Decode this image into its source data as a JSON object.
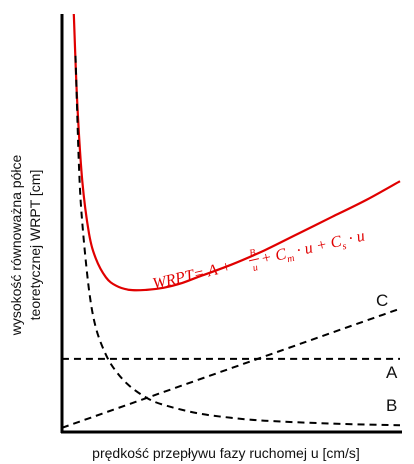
{
  "chart_data": {
    "type": "line",
    "xlabel": "prędkość przepływu fazy ruchomej u [cm/s]",
    "ylabel_line1": "wysokość równoważna półce",
    "ylabel_line2": "teoretycznej WRPT [cm]",
    "xlim": [
      0,
      10
    ],
    "ylim": [
      0,
      10
    ],
    "grid": false,
    "legend": "none",
    "equation": {
      "prefix": "WRPT= A + ",
      "frac_num": "B",
      "frac_den": "u",
      "suffix_a": " + C",
      "sub_m": "m",
      "suffix_b": " · u + C",
      "sub_s": "s",
      "suffix_c": " · u"
    },
    "series": [
      {
        "name": "WRPT",
        "color": "#e00000",
        "style": "solid",
        "x": [
          0.35,
          0.45,
          0.6,
          0.8,
          1.0,
          1.3,
          1.6,
          2.0,
          2.5,
          3.0,
          3.5,
          4.0,
          5.0,
          6.0,
          7.0,
          8.0,
          9.0,
          10.0
        ],
        "y": [
          10.0,
          7.9,
          6.0,
          4.75,
          4.15,
          3.7,
          3.5,
          3.4,
          3.4,
          3.45,
          3.55,
          3.7,
          4.0,
          4.35,
          4.75,
          5.15,
          5.55,
          6.0
        ]
      },
      {
        "name": "A",
        "color": "#000000",
        "style": "dashed",
        "x": [
          0.0,
          10.0
        ],
        "y": [
          1.75,
          1.75
        ]
      },
      {
        "name": "B",
        "color": "#000000",
        "style": "dashed",
        "x": [
          0.4,
          0.5,
          0.6,
          0.8,
          1.0,
          1.3,
          1.6,
          2.0,
          2.5,
          3.0,
          4.0,
          5.0,
          6.0,
          8.0,
          10.0
        ],
        "y": [
          9.0,
          6.4,
          5.0,
          3.4,
          2.5,
          1.85,
          1.45,
          1.1,
          0.82,
          0.65,
          0.45,
          0.34,
          0.27,
          0.2,
          0.16
        ]
      },
      {
        "name": "C",
        "color": "#000000",
        "style": "dashed",
        "x": [
          0.0,
          10.0
        ],
        "y": [
          0.1,
          2.95
        ]
      }
    ]
  }
}
